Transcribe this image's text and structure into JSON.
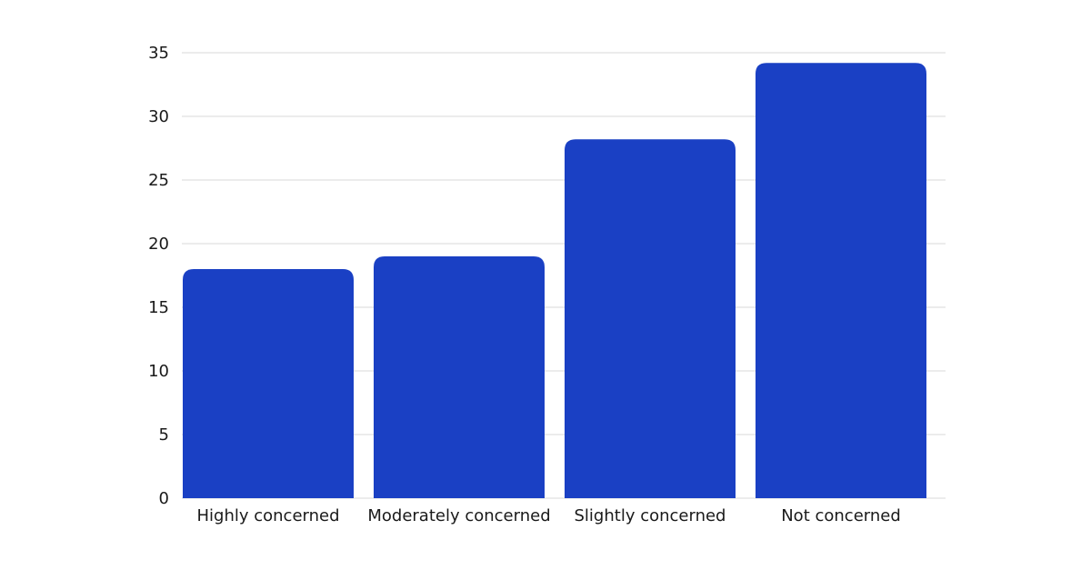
{
  "chart_data": {
    "type": "bar",
    "title": "",
    "xlabel": "",
    "ylabel": "",
    "categories": [
      "Highly concerned",
      "Moderately concerned",
      "Slightly concerned",
      "Not concerned"
    ],
    "values": [
      18,
      19,
      28.2,
      34.2
    ],
    "ylim": [
      0,
      35
    ],
    "yticks": [
      0,
      5,
      10,
      15,
      20,
      25,
      30,
      35
    ],
    "grid": true,
    "legend": "none",
    "bar_color": "#1a40c4",
    "grid_color": "#d9d9d9",
    "text_color": "#1a1a1a"
  }
}
